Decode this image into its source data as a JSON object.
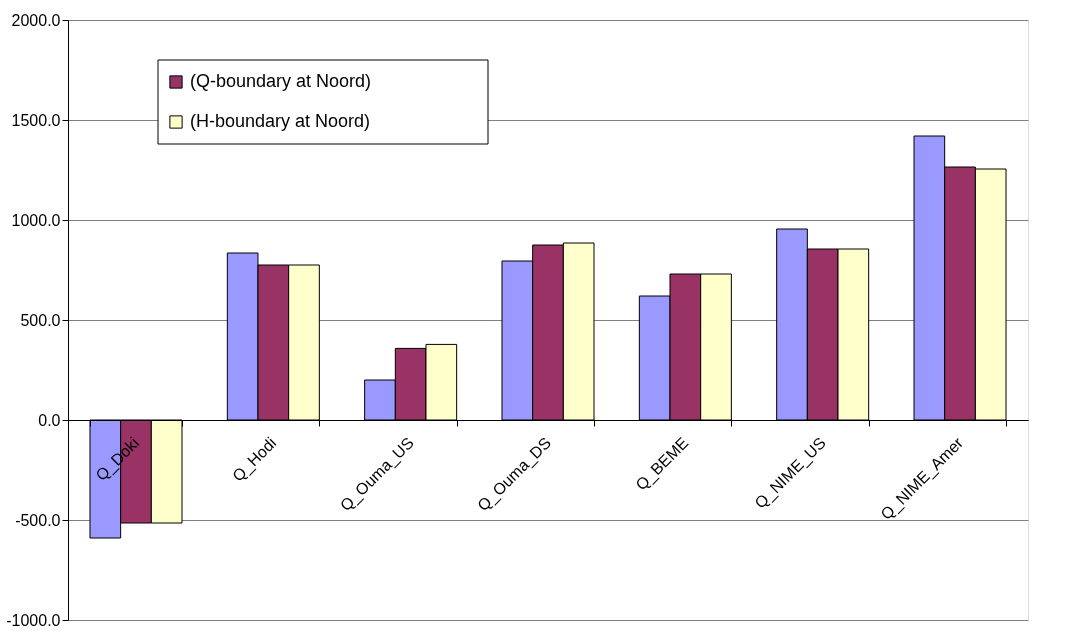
{
  "chart_data": {
    "type": "bar",
    "categories": [
      "Q_Doki",
      "Q_Hodi",
      "Q_Ouma_US",
      "Q_Ouma_DS",
      "Q_BEME",
      "Q_NIME_US",
      "Q_NIME_Amer"
    ],
    "series": [
      {
        "color": "#9999ff",
        "values": [
          -590,
          835,
          200,
          795,
          620,
          955,
          1420
        ]
      },
      {
        "name": "(Q-boundary at Noord)",
        "color": "#993366",
        "values": [
          -515,
          775,
          358,
          875,
          730,
          855,
          1265
        ]
      },
      {
        "name": "(H-boundary at Noord)",
        "color": "#ffffcc",
        "values": [
          -515,
          775,
          378,
          885,
          730,
          855,
          1255
        ]
      }
    ],
    "ylim": [
      -1000,
      2000
    ],
    "yticks": [
      {
        "value": -1000,
        "label": "-1000.0"
      },
      {
        "value": -500,
        "label": "-500.0"
      },
      {
        "value": 0,
        "label": "0.0"
      },
      {
        "value": 500,
        "label": "500.0"
      },
      {
        "value": 1000,
        "label": "1000.0"
      },
      {
        "value": 1500,
        "label": "1500.0"
      },
      {
        "value": 2000,
        "label": "2000.0"
      }
    ],
    "grid": "y",
    "legend": "top left"
  }
}
